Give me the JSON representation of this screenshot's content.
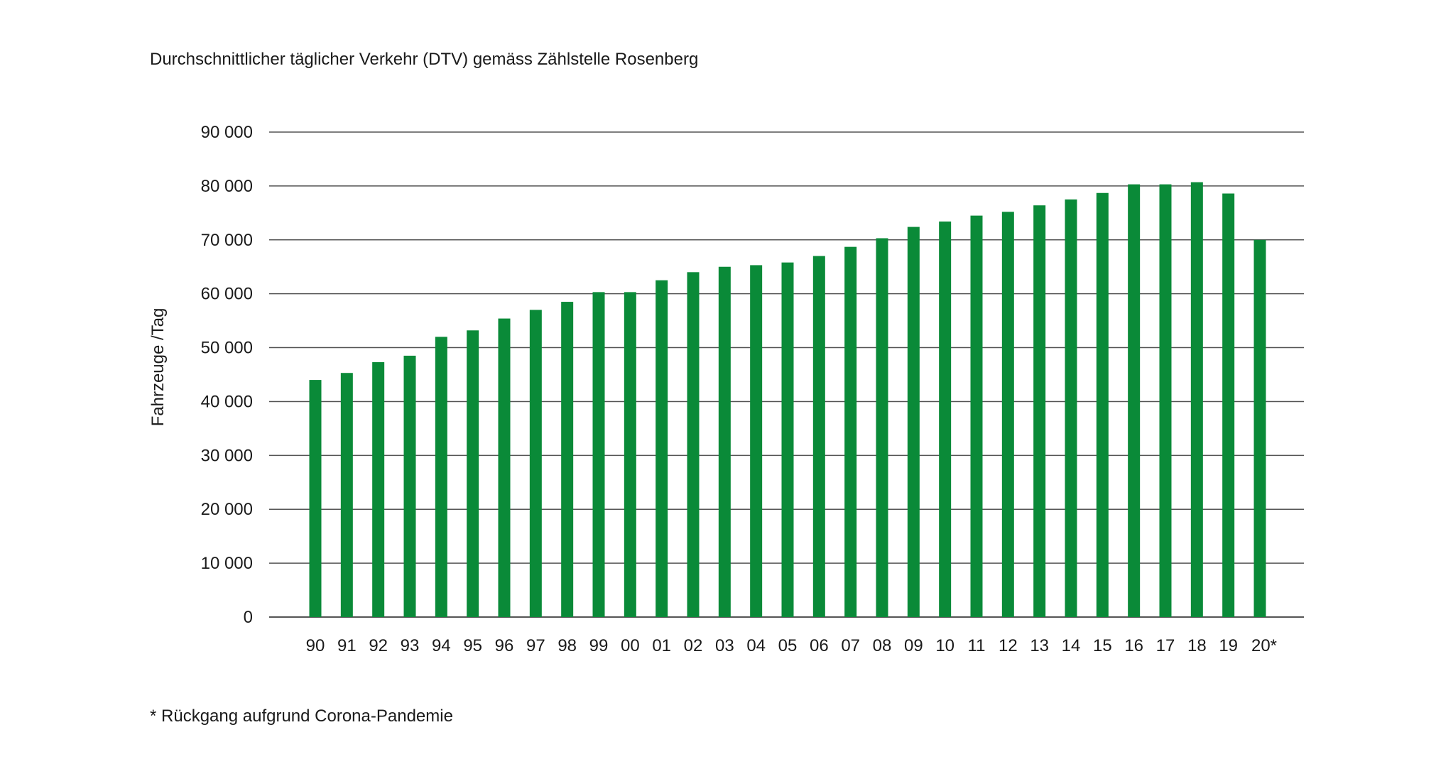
{
  "chart_data": {
    "type": "bar",
    "title": "Durchschnittlicher täglicher Verkehr (DTV) gemäss Zählstelle Rosenberg",
    "xlabel": "",
    "ylabel": "Fahrzeuge /Tag",
    "ylim": [
      0,
      90000
    ],
    "yticks": [
      0,
      10000,
      20000,
      30000,
      40000,
      50000,
      60000,
      70000,
      80000,
      90000
    ],
    "ytick_labels": [
      "0",
      "10 000",
      "20 000",
      "30 000",
      "40 000",
      "50 000",
      "60 000",
      "70 000",
      "80 000",
      "90 000"
    ],
    "categories": [
      "90",
      "91",
      "92",
      "93",
      "94",
      "95",
      "96",
      "97",
      "98",
      "99",
      "00",
      "01",
      "02",
      "03",
      "04",
      "05",
      "06",
      "07",
      "08",
      "09",
      "10",
      "11",
      "12",
      "13",
      "14",
      "15",
      "16",
      "17",
      "18",
      "19",
      "20*"
    ],
    "values": [
      44000,
      45300,
      47300,
      48500,
      52000,
      53200,
      55400,
      57000,
      58500,
      60300,
      60300,
      62500,
      64000,
      65000,
      65300,
      65800,
      67000,
      68700,
      70300,
      72400,
      73400,
      74500,
      75200,
      76400,
      77500,
      78700,
      80300,
      80300,
      80700,
      78600,
      70000
    ],
    "grid": true,
    "legend": "none",
    "bar_color": "#0a8a38",
    "gridline_color": "#555555",
    "footnote": "* Rückgang aufgrund Corona-Pandemie"
  }
}
